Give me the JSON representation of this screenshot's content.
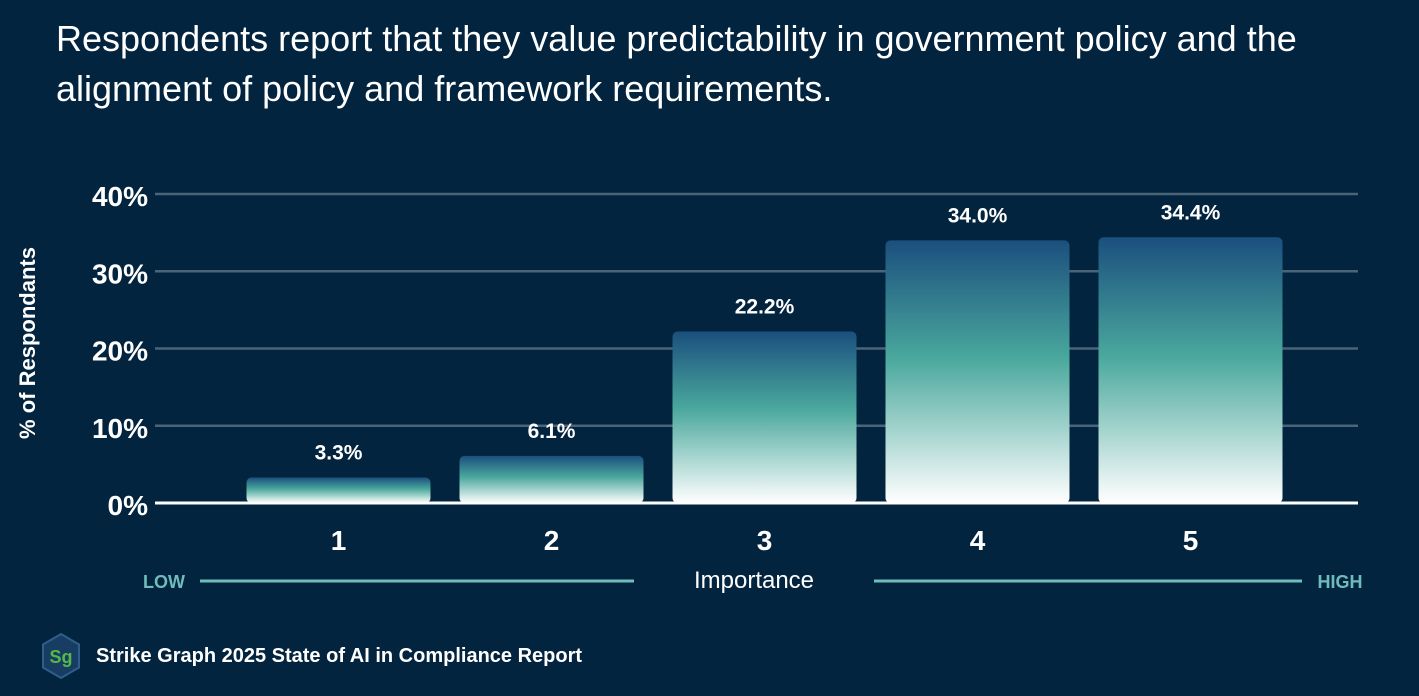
{
  "title": "Respondents report that they value predictability in government policy and the alignment of policy and framework requirements.",
  "footer": {
    "logo_text": "Sg",
    "source": "Strike Graph 2025 State of AI in Compliance Report"
  },
  "colors": {
    "background": "#03243e",
    "bar_top": "#1b4f7e",
    "bar_mid": "#4aa89d",
    "bar_bottom": "#ffffff",
    "grid": "#4b6578",
    "scale_line": "#6fbcbb",
    "logo_fill": "#173d63",
    "logo_stroke": "#2d5e8c",
    "logo_text": "#56b848"
  },
  "chart_data": {
    "type": "bar",
    "categories": [
      "1",
      "2",
      "3",
      "4",
      "5"
    ],
    "values": [
      3.3,
      6.1,
      22.2,
      34.0,
      34.4
    ],
    "value_labels": [
      "3.3%",
      "6.1%",
      "22.2%",
      "34.0%",
      "34.4%"
    ],
    "yticks": [
      0,
      10,
      20,
      30,
      40
    ],
    "ytick_labels": [
      "0%",
      "10%",
      "20%",
      "30%",
      "40%"
    ],
    "ylim": [
      0,
      40
    ],
    "ylabel": "% of Respondants",
    "xlabel": "Importance",
    "scale_low": "LOW",
    "scale_high": "HIGH",
    "grid": true
  }
}
